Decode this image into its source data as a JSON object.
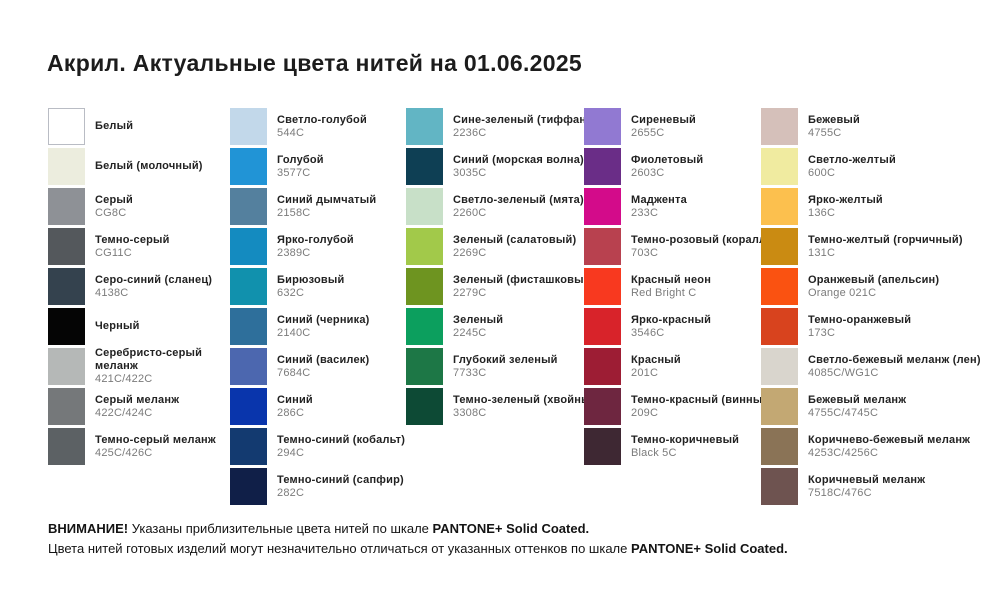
{
  "title": "Акрил. Актуальные цвета нитей на 01.06.2025",
  "columns": [
    {
      "items": [
        {
          "name": "Белый",
          "code": "",
          "color": "#ffffff",
          "border": true
        },
        {
          "name": "Белый (молочный)",
          "code": "",
          "color": "#ecedde"
        },
        {
          "name": "Серый",
          "code": "CG8C",
          "color": "#8e9196"
        },
        {
          "name": "Темно-серый",
          "code": "CG11C",
          "color": "#54585c"
        },
        {
          "name": "Серо-синий (сланец)",
          "code": "4138C",
          "color": "#34424e"
        },
        {
          "name": "Черный",
          "code": "",
          "color": "#050505"
        },
        {
          "name": "Серебристо-серый меланж",
          "code": "421C/422C",
          "color": "#b5b8b7"
        },
        {
          "name": "Серый меланж",
          "code": "422C/424C",
          "color": "#75787a"
        },
        {
          "name": "Темно-серый меланж",
          "code": "425C/426C",
          "color": "#5c6164"
        }
      ]
    },
    {
      "items": [
        {
          "name": "Светло-голубой",
          "code": "544C",
          "color": "#c2d8ea"
        },
        {
          "name": "Голубой",
          "code": "3577C",
          "color": "#2194d6"
        },
        {
          "name": "Синий дымчатый",
          "code": "2158C",
          "color": "#54809e"
        },
        {
          "name": "Ярко-голубой",
          "code": "2389C",
          "color": "#148bc0"
        },
        {
          "name": "Бирюзовый",
          "code": "632C",
          "color": "#1191ad"
        },
        {
          "name": "Синий (черника)",
          "code": "2140C",
          "color": "#2e6f9b"
        },
        {
          "name": "Синий (василек)",
          "code": "7684C",
          "color": "#4c67af"
        },
        {
          "name": "Синий",
          "code": "286C",
          "color": "#0935ac"
        },
        {
          "name": "Темно-синий (кобальт)",
          "code": "294C",
          "color": "#133a70"
        },
        {
          "name": "Темно-синий (сапфир)",
          "code": "282C",
          "color": "#101f48"
        }
      ]
    },
    {
      "items": [
        {
          "name": "Сине-зеленый (тиффани)",
          "code": "2236C",
          "color": "#62b5c4"
        },
        {
          "name": "Синий (морская волна)",
          "code": "3035C",
          "color": "#0e3f54"
        },
        {
          "name": "Светло-зеленый (мята)",
          "code": "2260C",
          "color": "#c8e0c8"
        },
        {
          "name": "Зеленый (салатовый)",
          "code": "2269C",
          "color": "#a2c94a"
        },
        {
          "name": "Зеленый (фисташковый)",
          "code": "2279C",
          "color": "#6e9420"
        },
        {
          "name": "Зеленый",
          "code": "2245C",
          "color": "#0c9f5e"
        },
        {
          "name": "Глубокий зеленый",
          "code": "7733C",
          "color": "#1d7746"
        },
        {
          "name": "Темно-зеленый (хвойный)",
          "code": "3308C",
          "color": "#0d4a35"
        }
      ]
    },
    {
      "items": [
        {
          "name": "Сиреневый",
          "code": "2655C",
          "color": "#9179d2"
        },
        {
          "name": "Фиолетовый",
          "code": "2603C",
          "color": "#6a2d87"
        },
        {
          "name": "Маджента",
          "code": "233C",
          "color": "#d30b8a"
        },
        {
          "name": "Темно-розовый (коралл)",
          "code": "703C",
          "color": "#b8414f"
        },
        {
          "name": "Красный неон",
          "code": "Red Bright C",
          "color": "#f8391f"
        },
        {
          "name": "Ярко-красный",
          "code": "3546C",
          "color": "#d8232a"
        },
        {
          "name": "Красный",
          "code": "201C",
          "color": "#9d1d34"
        },
        {
          "name": "Темно-красный (винный)",
          "code": "209C",
          "color": "#6e2640"
        },
        {
          "name": "Темно-коричневый",
          "code": "Black 5C",
          "color": "#3e2833"
        }
      ]
    },
    {
      "items": [
        {
          "name": "Бежевый",
          "code": "4755C",
          "color": "#d5c0ba"
        },
        {
          "name": "Светло-желтый",
          "code": "600C",
          "color": "#f0eba0"
        },
        {
          "name": "Ярко-желтый",
          "code": "136C",
          "color": "#fcc04e"
        },
        {
          "name": "Темно-желтый (горчичный)",
          "code": "131C",
          "color": "#ca8b12"
        },
        {
          "name": "Оранжевый (апельсин)",
          "code": "Orange 021C",
          "color": "#fa5211"
        },
        {
          "name": "Темно-оранжевый",
          "code": "173C",
          "color": "#d8431e"
        },
        {
          "name": "Светло-бежевый меланж (лен)",
          "code": "4085C/WG1C",
          "color": "#d9d5cd"
        },
        {
          "name": "Бежевый меланж",
          "code": "4755C/4745C",
          "color": "#c3a873"
        },
        {
          "name": "Коричнево-бежевый меланж",
          "code": "4253C/4256C",
          "color": "#8a7356"
        },
        {
          "name": "Коричневый меланж",
          "code": "7518C/476C",
          "color": "#6e5350"
        }
      ]
    }
  ],
  "footer": {
    "warning_label": "ВНИМАНИЕ!",
    "line1": "Указаны приблизительные цвета нитей по шкале",
    "pantone": "PANTONE+ Solid Coated.",
    "line2": "Цвета нитей готовых изделий могут незначительно отличаться от указанных оттенков по шкале"
  }
}
